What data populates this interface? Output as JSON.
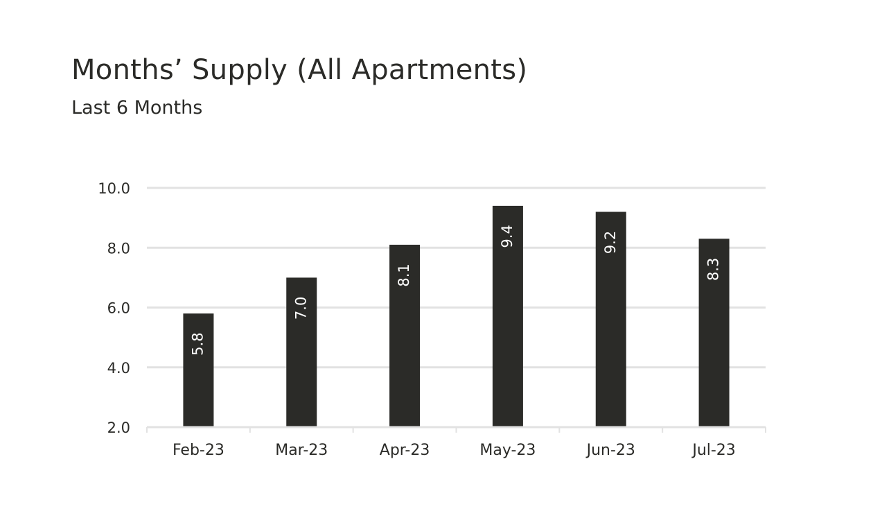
{
  "chart_data": {
    "type": "bar",
    "title": "Months’ Supply (All Apartments)",
    "subtitle": "Last 6 Months",
    "categories": [
      "Feb-23",
      "Mar-23",
      "Apr-23",
      "May-23",
      "Jun-23",
      "Jul-23"
    ],
    "values": [
      5.8,
      7.0,
      8.1,
      9.4,
      9.2,
      8.3
    ],
    "value_labels": [
      "5.8",
      "7.0",
      "8.1",
      "9.4",
      "9.2",
      "8.3"
    ],
    "ylim": [
      2.0,
      10.0
    ],
    "yticks": [
      2.0,
      4.0,
      6.0,
      8.0,
      10.0
    ],
    "ytick_labels": [
      "2.0",
      "4.0",
      "6.0",
      "8.0",
      "10.0"
    ],
    "grid": true,
    "bar_color": "#2b2b28",
    "grid_color": "#e2e2e2",
    "label_color": "#ffffff"
  }
}
